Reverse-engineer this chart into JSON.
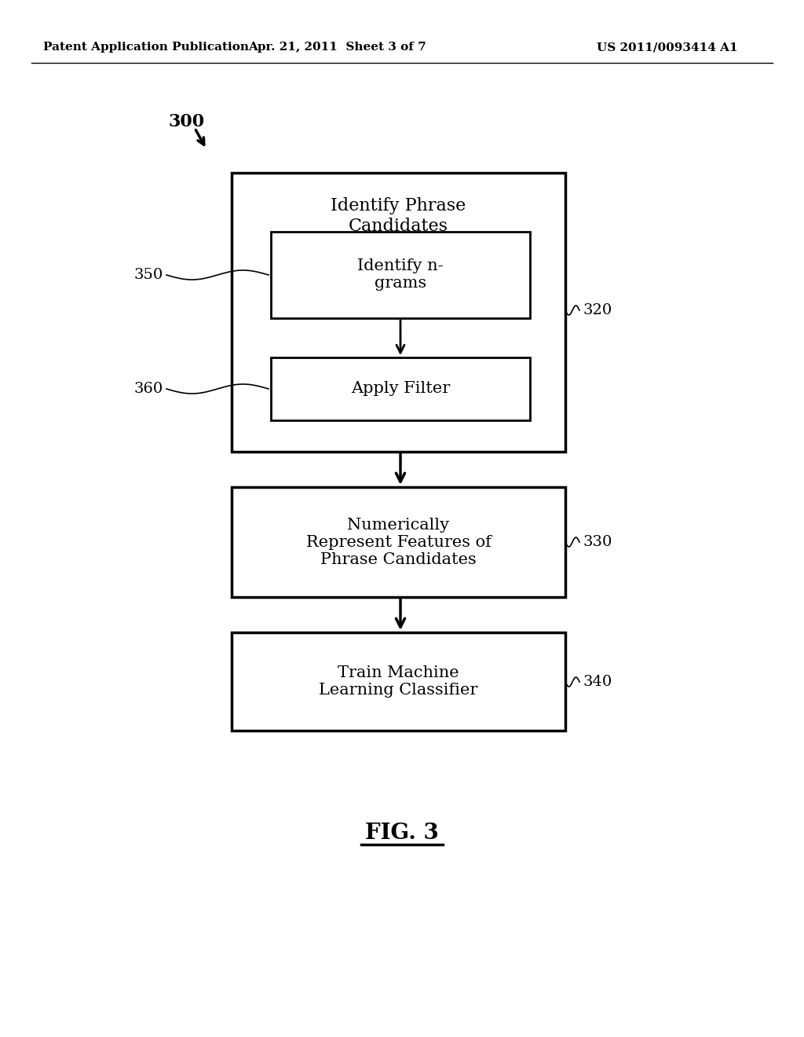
{
  "bg_color": "#ffffff",
  "header_left": "Patent Application Publication",
  "header_center": "Apr. 21, 2011  Sheet 3 of 7",
  "header_right": "US 2011/0093414 A1",
  "fig_label": "FIG. 3",
  "ref_300": "300",
  "ref_320": "320",
  "ref_330": "330",
  "ref_340": "340",
  "ref_350": "350",
  "ref_360": "360",
  "box_outer_label": "Identify Phrase\nCandidates",
  "box_ngrams_label": "Identify n-\ngrams",
  "box_filter_label": "Apply Filter",
  "box_numeric_label": "Numerically\nRepresent Features of\nPhrase Candidates",
  "box_train_label": "Train Machine\nLearning Classifier"
}
